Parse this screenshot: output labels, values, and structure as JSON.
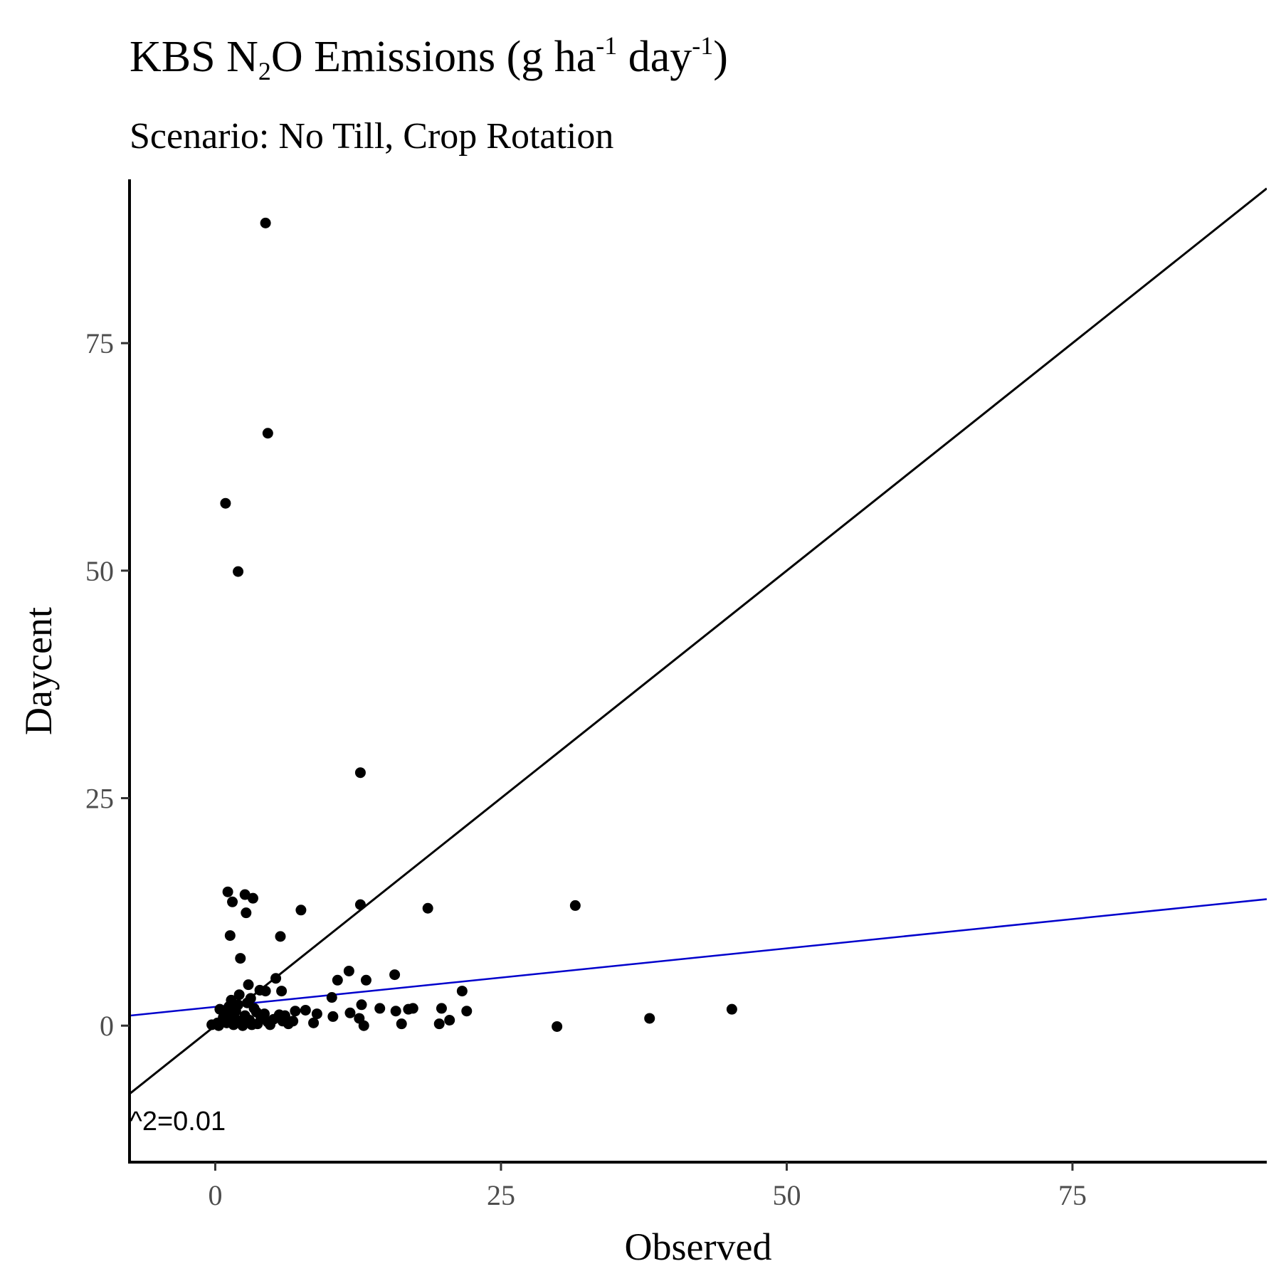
{
  "chart_data": {
    "type": "scatter",
    "title": {
      "parts": [
        {
          "text": "KBS N",
          "style": "normal"
        },
        {
          "text": "2",
          "style": "sub"
        },
        {
          "text": "O Emissions (g ha",
          "style": "normal"
        },
        {
          "text": "-1",
          "style": "sup"
        },
        {
          "text": " day",
          "style": "normal"
        },
        {
          "text": "-1",
          "style": "sup"
        },
        {
          "text": ")",
          "style": "normal"
        }
      ]
    },
    "subtitle": "Scenario: No Till, Crop Rotation",
    "xlabel": "Observed",
    "ylabel": "Daycent",
    "xlim": [
      -7.5,
      92
    ],
    "ylim": [
      -15,
      93
    ],
    "xticks": [
      0,
      25,
      50,
      75
    ],
    "xtick_labels": [
      "0",
      "25",
      "50",
      "75"
    ],
    "yticks": [
      0,
      25,
      50,
      75
    ],
    "ytick_labels": [
      "0",
      "25",
      "50",
      "75"
    ],
    "grid": false,
    "annotation": "^2=0.01",
    "lines": [
      {
        "kind": "identity",
        "color": "#000000",
        "x": [
          -7.5,
          92
        ],
        "y": [
          -7.5,
          92
        ]
      },
      {
        "kind": "regression",
        "color": "#0000cc",
        "x": [
          -7.5,
          92
        ],
        "y": [
          1.1,
          13.9
        ]
      }
    ],
    "point_color": "#000000",
    "points": [
      [
        4.4,
        88.2
      ],
      [
        4.6,
        65.1
      ],
      [
        0.9,
        57.4
      ],
      [
        2.0,
        49.9
      ],
      [
        12.7,
        27.8
      ],
      [
        1.1,
        14.7
      ],
      [
        2.6,
        14.4
      ],
      [
        3.3,
        14.0
      ],
      [
        1.5,
        13.6
      ],
      [
        2.7,
        12.4
      ],
      [
        7.5,
        12.7
      ],
      [
        12.7,
        13.3
      ],
      [
        18.6,
        12.9
      ],
      [
        31.5,
        13.2
      ],
      [
        1.3,
        9.9
      ],
      [
        5.7,
        9.8
      ],
      [
        2.2,
        7.4
      ],
      [
        11.7,
        6.0
      ],
      [
        15.7,
        5.6
      ],
      [
        10.7,
        5.0
      ],
      [
        13.2,
        5.0
      ],
      [
        5.3,
        5.2
      ],
      [
        2.9,
        4.5
      ],
      [
        3.9,
        3.9
      ],
      [
        21.6,
        3.8
      ],
      [
        5.8,
        3.8
      ],
      [
        4.4,
        3.8
      ],
      [
        10.2,
        3.1
      ],
      [
        2.1,
        3.4
      ],
      [
        1.4,
        2.8
      ],
      [
        3.1,
        3.0
      ],
      [
        12.8,
        2.3
      ],
      [
        14.4,
        1.9
      ],
      [
        16.9,
        1.8
      ],
      [
        17.3,
        1.9
      ],
      [
        19.8,
        1.9
      ],
      [
        22.0,
        1.6
      ],
      [
        45.2,
        1.8
      ],
      [
        15.8,
        1.6
      ],
      [
        11.8,
        1.4
      ],
      [
        8.9,
        1.3
      ],
      [
        7.0,
        1.6
      ],
      [
        7.9,
        1.7
      ],
      [
        10.3,
        1.0
      ],
      [
        12.6,
        0.8
      ],
      [
        20.5,
        0.6
      ],
      [
        38.0,
        0.8
      ],
      [
        8.6,
        0.3
      ],
      [
        6.4,
        0.2
      ],
      [
        4.8,
        0.1
      ],
      [
        16.3,
        0.2
      ],
      [
        19.6,
        0.2
      ],
      [
        13.0,
        0.0
      ],
      [
        29.9,
        -0.1
      ],
      [
        0.2,
        0.3
      ],
      [
        0.6,
        0.5
      ],
      [
        0.9,
        1.4
      ],
      [
        1.0,
        0.3
      ],
      [
        1.5,
        0.8
      ],
      [
        1.8,
        1.6
      ],
      [
        2.3,
        0.4
      ],
      [
        2.6,
        1.1
      ],
      [
        3.0,
        0.6
      ],
      [
        3.4,
        1.9
      ],
      [
        3.7,
        0.2
      ],
      [
        4.0,
        0.9
      ],
      [
        4.3,
        1.3
      ],
      [
        5.1,
        0.7
      ],
      [
        5.6,
        1.2
      ],
      [
        6.1,
        1.1
      ],
      [
        6.8,
        0.5
      ],
      [
        0.4,
        1.8
      ],
      [
        1.2,
        2.1
      ],
      [
        2.0,
        2.3
      ],
      [
        2.8,
        2.5
      ],
      [
        0.7,
        0.9
      ],
      [
        1.6,
        0.1
      ],
      [
        2.4,
        0.0
      ],
      [
        3.2,
        0.1
      ],
      [
        0.3,
        0.0
      ],
      [
        1.9,
        0.6
      ],
      [
        4.6,
        0.4
      ],
      [
        5.9,
        0.5
      ],
      [
        -0.3,
        0.1
      ],
      [
        3.6,
        1.5
      ]
    ]
  }
}
